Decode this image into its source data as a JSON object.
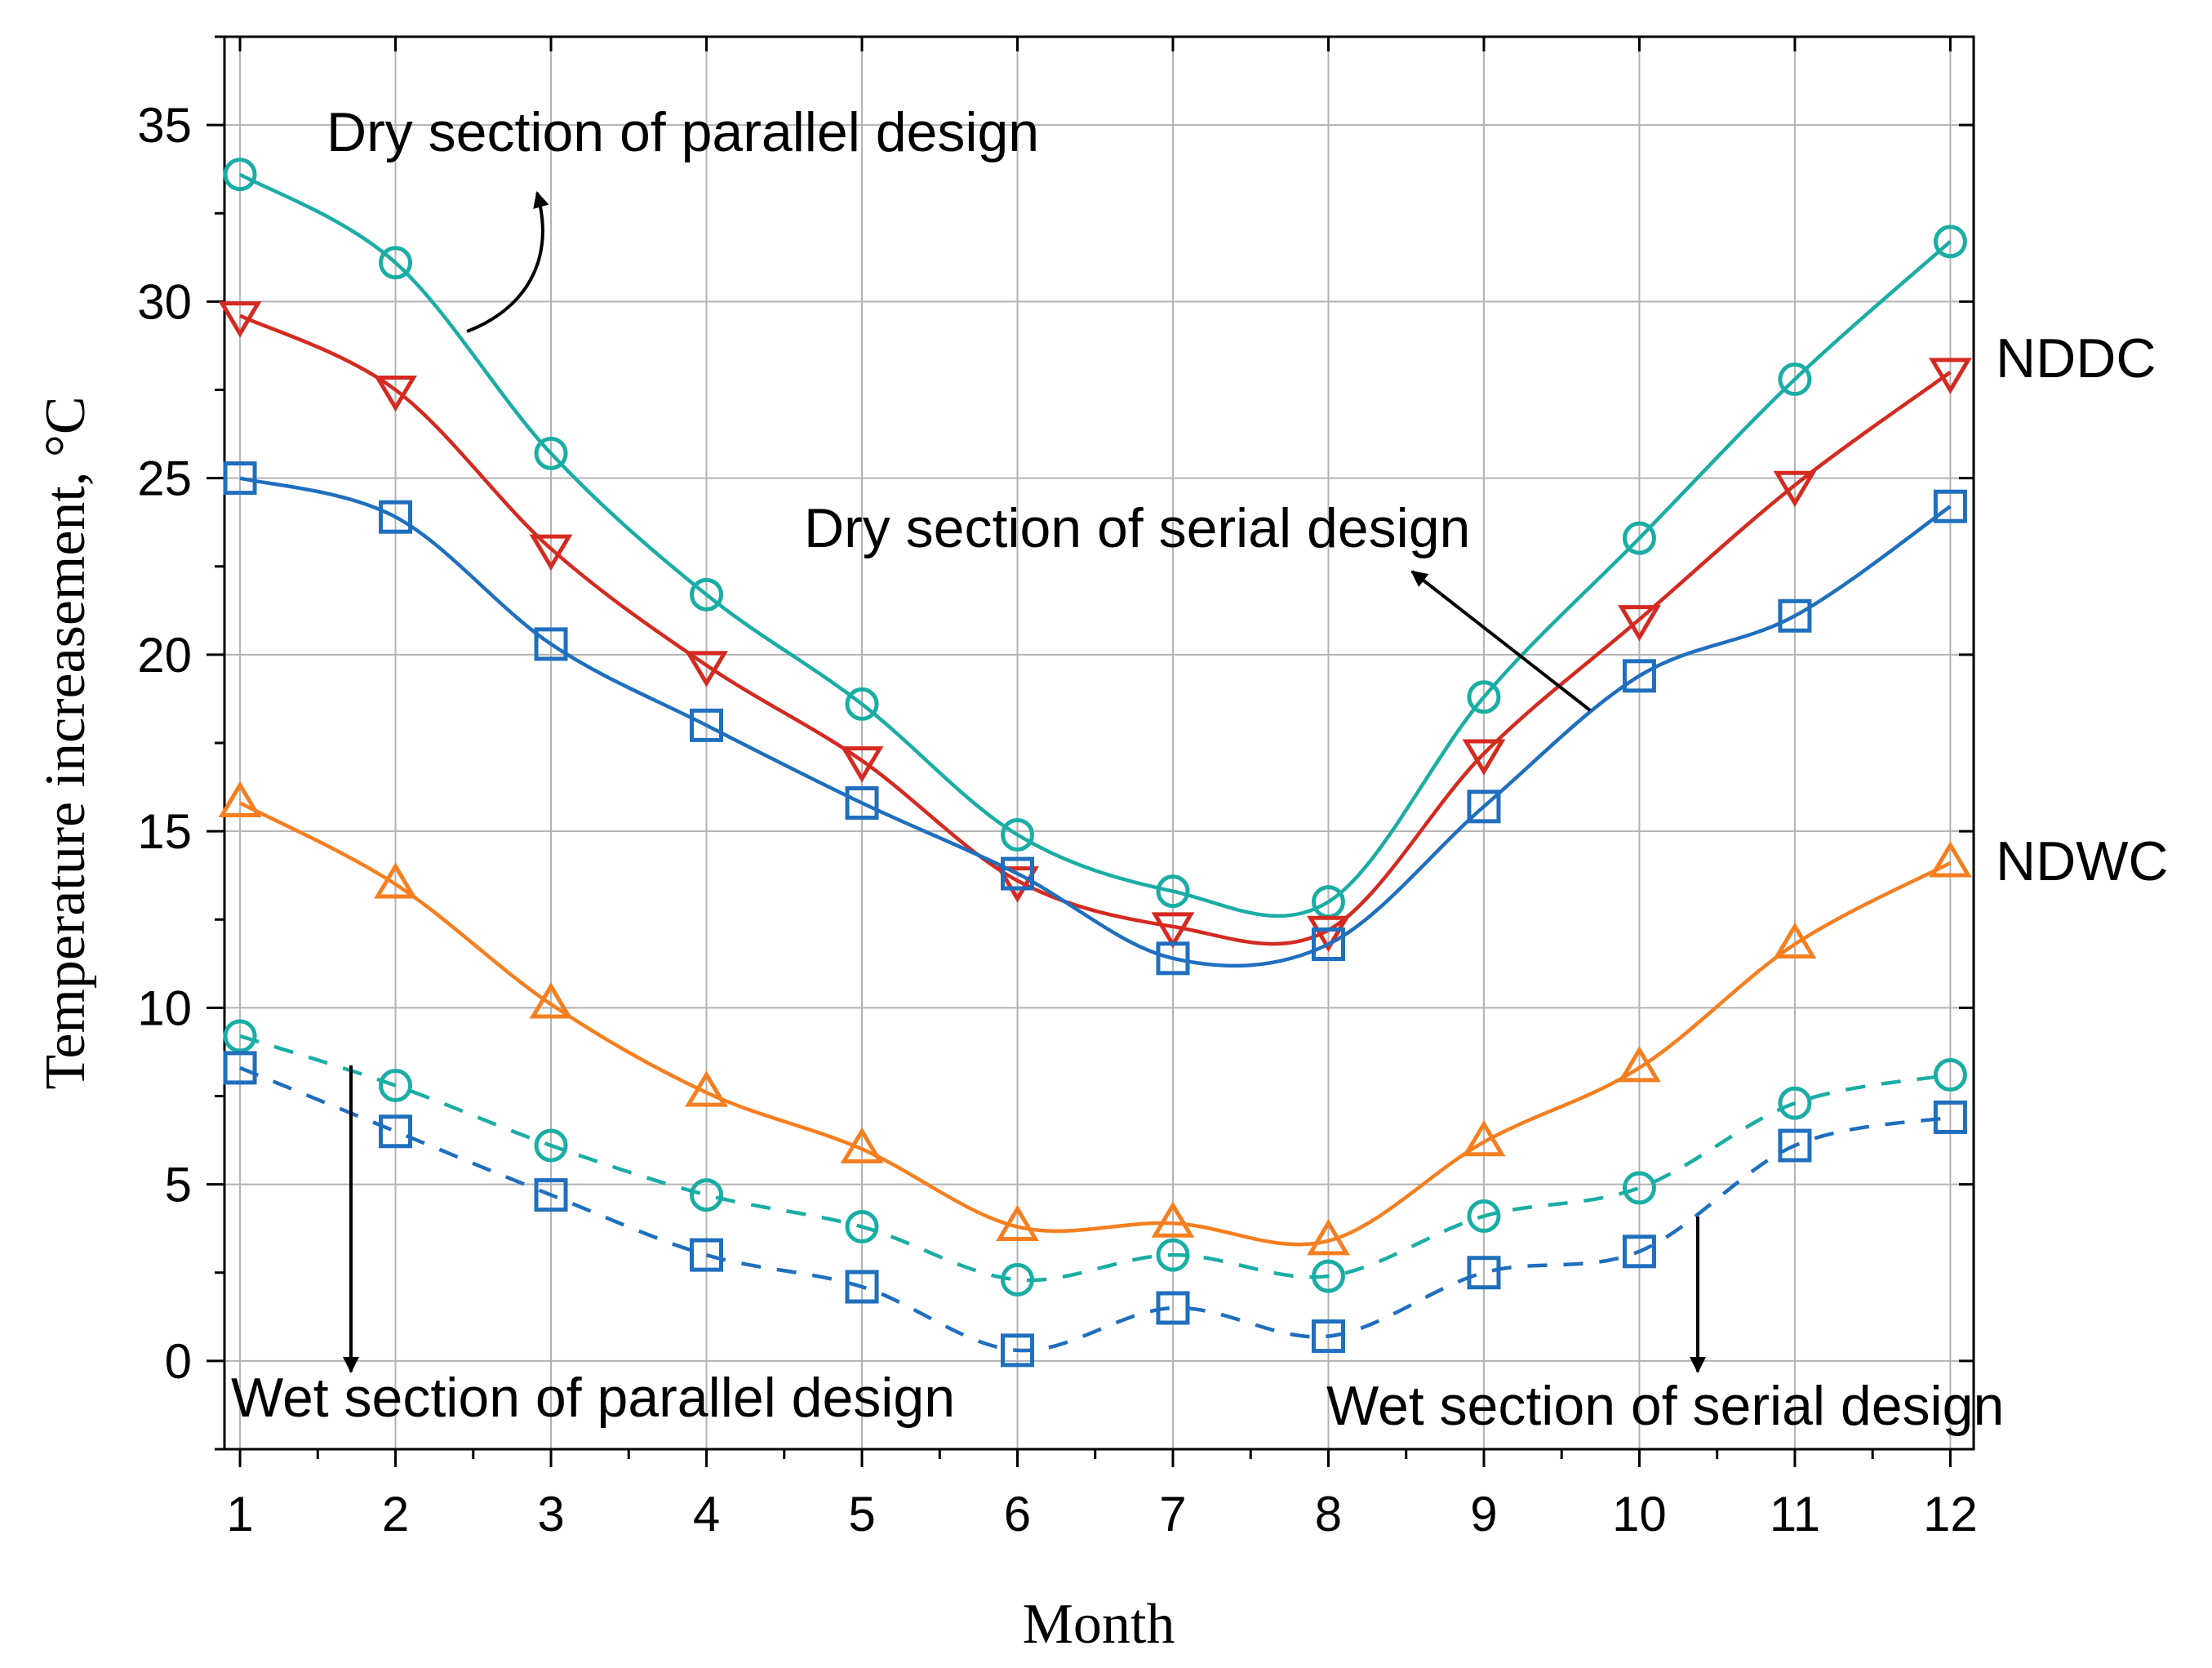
{
  "chart_data": {
    "type": "line",
    "xlabel": "Month",
    "ylabel": "Temperature increasement, °C",
    "xlim": [
      0.9,
      12.15
    ],
    "ylim": [
      -2.5,
      37.5
    ],
    "x_ticks": [
      1,
      2,
      3,
      4,
      5,
      6,
      7,
      8,
      9,
      10,
      11,
      12
    ],
    "x_tick_labels": [
      "1",
      "2",
      "3",
      "4",
      "5",
      "6",
      "7",
      "8",
      "9",
      "10",
      "11",
      "12"
    ],
    "y_ticks": [
      0,
      5,
      10,
      15,
      20,
      25,
      30,
      35
    ],
    "y_tick_labels": [
      "0",
      "5",
      "10",
      "15",
      "20",
      "25",
      "30",
      "35"
    ],
    "grid": true,
    "categories": [
      1,
      2,
      3,
      4,
      5,
      6,
      7,
      8,
      9,
      10,
      11,
      12
    ],
    "series": [
      {
        "name": "Dry section of parallel design",
        "color": "#1aada5",
        "marker": "circle",
        "dash": false,
        "values": [
          33.6,
          31.1,
          25.7,
          21.7,
          18.6,
          14.9,
          13.3,
          13.0,
          18.8,
          23.3,
          27.8,
          31.7
        ]
      },
      {
        "name": "NDDC",
        "color": "#d42a20",
        "marker": "triangle-down",
        "dash": false,
        "values": [
          29.6,
          27.5,
          23.0,
          19.7,
          17.0,
          13.6,
          12.3,
          12.2,
          17.2,
          21.0,
          24.8,
          28.0
        ]
      },
      {
        "name": "Dry section of serial design",
        "color": "#1f6fbe",
        "marker": "square",
        "dash": false,
        "values": [
          25.0,
          23.9,
          20.3,
          18.0,
          15.8,
          13.8,
          11.4,
          11.8,
          15.7,
          19.4,
          21.1,
          24.2
        ]
      },
      {
        "name": "NDWC",
        "color": "#f57f20",
        "marker": "triangle-up",
        "dash": false,
        "values": [
          15.8,
          13.5,
          10.1,
          7.6,
          6.0,
          3.8,
          3.9,
          3.4,
          6.2,
          8.3,
          11.8,
          14.1
        ]
      },
      {
        "name": "Wet section of parallel design",
        "color": "#1aada5",
        "marker": "circle",
        "dash": true,
        "values": [
          9.2,
          7.8,
          6.1,
          4.7,
          3.8,
          2.3,
          3.0,
          2.4,
          4.1,
          4.9,
          7.3,
          8.1
        ]
      },
      {
        "name": "Wet section of serial design",
        "color": "#1f6fbe",
        "marker": "square",
        "dash": true,
        "values": [
          8.3,
          6.5,
          4.7,
          3.0,
          2.1,
          0.3,
          1.5,
          0.7,
          2.5,
          3.1,
          6.1,
          6.9
        ]
      }
    ],
    "annotations": [
      {
        "id": "dry-parallel",
        "text": "Dry section of parallel design"
      },
      {
        "id": "dry-serial",
        "text": "Dry section of serial design"
      },
      {
        "id": "wet-parallel",
        "text": "Wet section of parallel design"
      },
      {
        "id": "wet-serial",
        "text": "Wet section of serial design"
      },
      {
        "id": "nddc",
        "text": "NDDC"
      },
      {
        "id": "ndwc",
        "text": "NDWC"
      }
    ]
  }
}
